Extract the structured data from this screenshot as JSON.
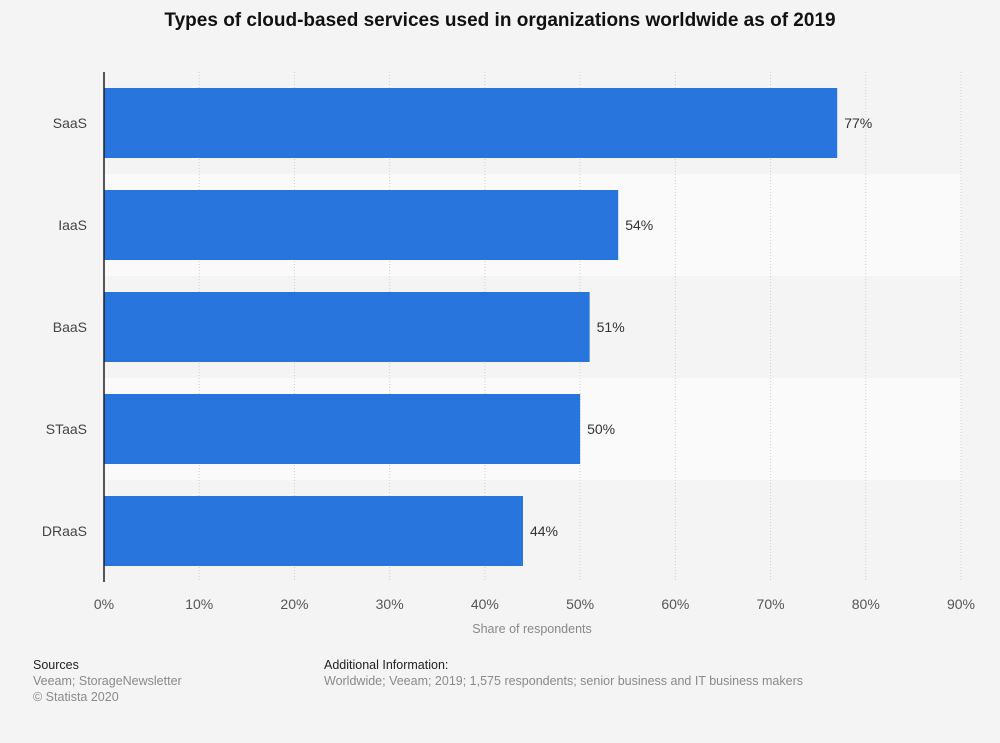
{
  "chart_data": {
    "type": "bar",
    "orientation": "horizontal",
    "title": "Types of cloud-based services used in organizations worldwide as of 2019",
    "categories": [
      "SaaS",
      "IaaS",
      "BaaS",
      "STaaS",
      "DRaaS"
    ],
    "values": [
      77,
      54,
      51,
      50,
      44
    ],
    "value_labels": [
      "77%",
      "54%",
      "51%",
      "50%",
      "44%"
    ],
    "xlabel": "Share of respondents",
    "ylabel": "",
    "xlim": [
      0,
      90
    ],
    "x_ticks": [
      0,
      10,
      20,
      30,
      40,
      50,
      60,
      70,
      80,
      90
    ],
    "x_tick_labels": [
      "0%",
      "10%",
      "20%",
      "30%",
      "40%",
      "50%",
      "60%",
      "70%",
      "80%",
      "90%"
    ],
    "grid": true,
    "bar_color": "#2876dd"
  },
  "footer": {
    "sources_label": "Sources",
    "sources_line1": "Veeam; StorageNewsletter",
    "sources_line2": "© Statista 2020",
    "additional_label": "Additional Information:",
    "additional_text": "Worldwide; Veeam; 2019; 1,575 respondents; senior business and IT business makers"
  }
}
